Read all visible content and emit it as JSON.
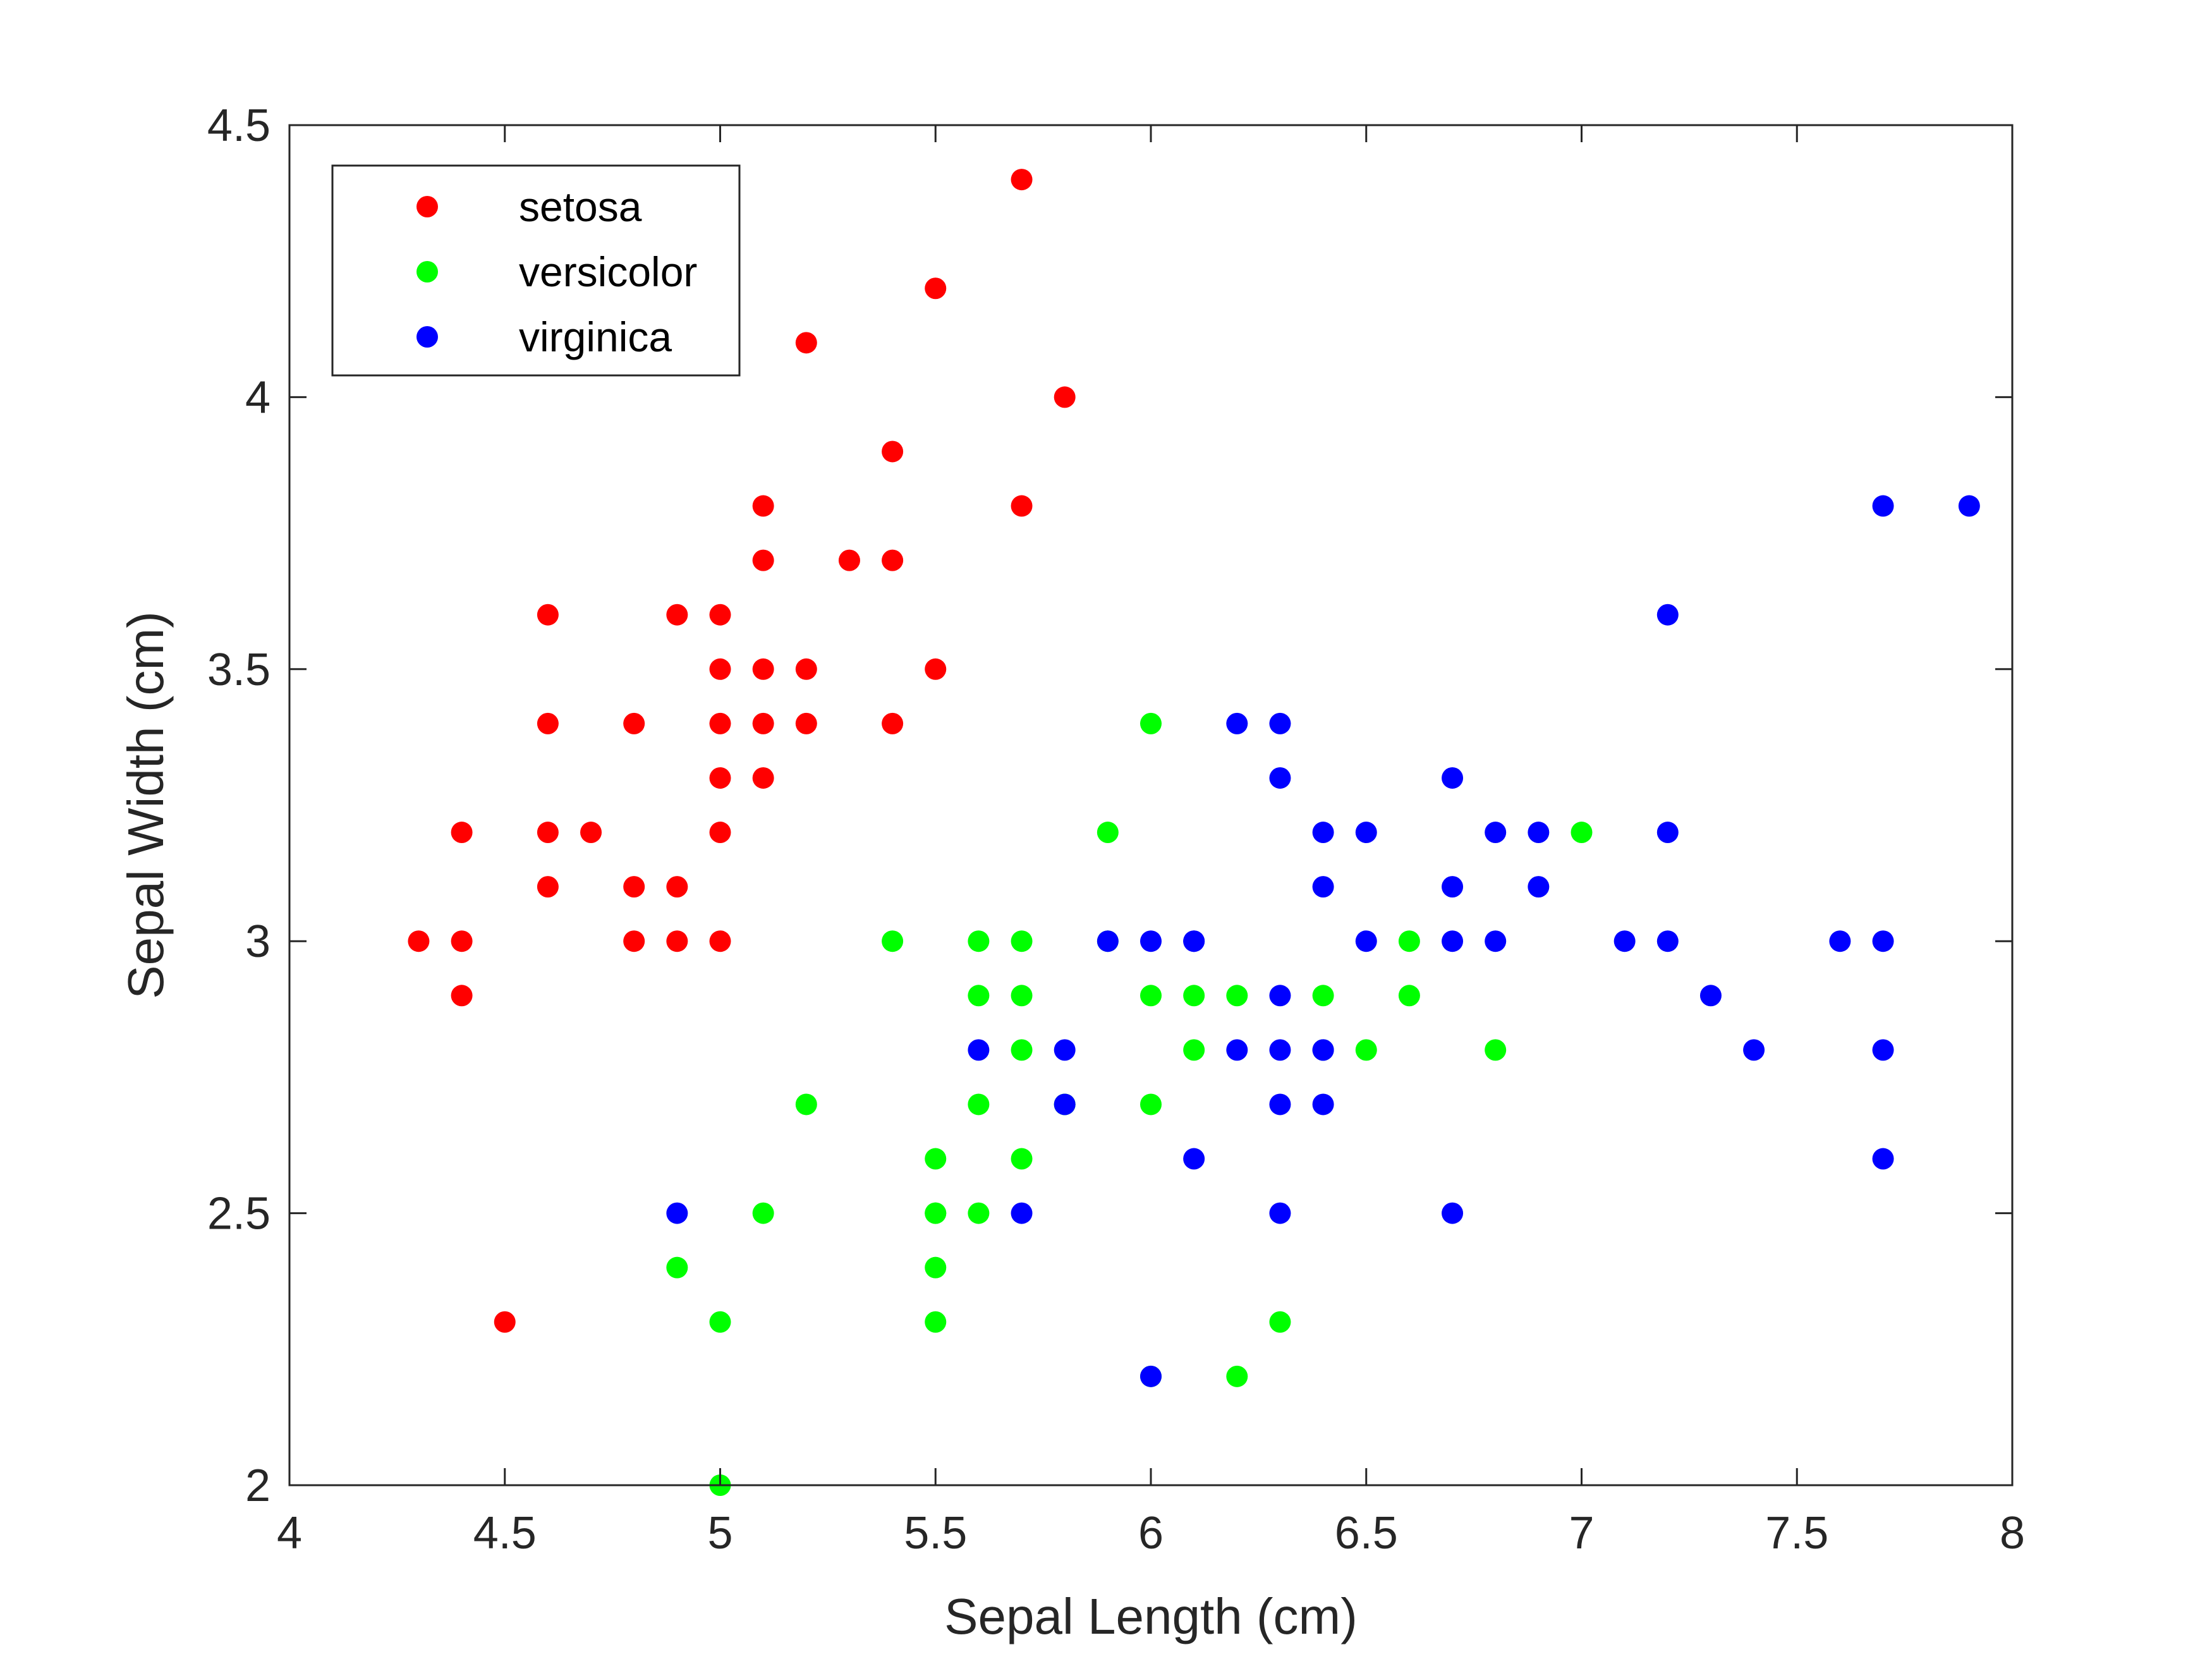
{
  "chart_data": {
    "type": "scatter",
    "title": "",
    "xlabel": "Sepal Length (cm)",
    "ylabel": "Sepal Width (cm)",
    "xlim": [
      4,
      8
    ],
    "ylim": [
      2,
      4.5
    ],
    "xticks": [
      "4",
      "4.5",
      "5",
      "5.5",
      "6",
      "6.5",
      "7",
      "7.5",
      "8"
    ],
    "yticks": [
      "2",
      "2.5",
      "3",
      "3.5",
      "4",
      "4.5"
    ],
    "grid": false,
    "legend_position": "top-left",
    "series": [
      {
        "name": "setosa",
        "color": "#ff0000",
        "points": [
          [
            5.1,
            3.5
          ],
          [
            4.9,
            3.0
          ],
          [
            4.7,
            3.2
          ],
          [
            4.6,
            3.1
          ],
          [
            5.0,
            3.6
          ],
          [
            5.4,
            3.9
          ],
          [
            4.6,
            3.4
          ],
          [
            5.0,
            3.4
          ],
          [
            4.4,
            2.9
          ],
          [
            4.9,
            3.1
          ],
          [
            5.4,
            3.7
          ],
          [
            4.8,
            3.4
          ],
          [
            4.8,
            3.0
          ],
          [
            4.3,
            3.0
          ],
          [
            5.8,
            4.0
          ],
          [
            5.7,
            4.4
          ],
          [
            5.4,
            3.4
          ],
          [
            5.7,
            3.8
          ],
          [
            5.1,
            3.8
          ],
          [
            5.2,
            3.5
          ],
          [
            5.0,
            3.2
          ],
          [
            5.5,
            4.2
          ],
          [
            5.2,
            4.1
          ],
          [
            5.0,
            3.5
          ],
          [
            4.4,
            3.0
          ],
          [
            4.5,
            2.3
          ],
          [
            5.1,
            3.3
          ],
          [
            4.4,
            3.2
          ],
          [
            5.3,
            3.7
          ],
          [
            5.0,
            3.3
          ],
          [
            4.8,
            3.1
          ],
          [
            4.9,
            3.6
          ],
          [
            5.2,
            3.4
          ],
          [
            5.0,
            3.0
          ],
          [
            4.6,
            3.2
          ],
          [
            5.1,
            3.7
          ],
          [
            5.5,
            3.5
          ],
          [
            4.6,
            3.6
          ],
          [
            5.1,
            3.4
          ]
        ]
      },
      {
        "name": "versicolor",
        "color": "#00ff00",
        "points": [
          [
            7.0,
            3.2
          ],
          [
            6.4,
            2.9
          ],
          [
            5.5,
            2.3
          ],
          [
            6.5,
            2.8
          ],
          [
            5.7,
            2.8
          ],
          [
            6.3,
            2.3
          ],
          [
            4.9,
            2.4
          ],
          [
            6.6,
            2.9
          ],
          [
            5.2,
            2.7
          ],
          [
            5.0,
            2.0
          ],
          [
            5.9,
            3.0
          ],
          [
            6.0,
            2.2
          ],
          [
            6.1,
            2.9
          ],
          [
            5.6,
            2.9
          ],
          [
            5.6,
            3.0
          ],
          [
            5.8,
            2.7
          ],
          [
            6.2,
            2.2
          ],
          [
            5.6,
            2.5
          ],
          [
            5.9,
            3.2
          ],
          [
            6.1,
            2.8
          ],
          [
            6.6,
            3.0
          ],
          [
            6.8,
            2.8
          ],
          [
            6.0,
            2.9
          ],
          [
            5.7,
            2.6
          ],
          [
            5.5,
            2.4
          ],
          [
            5.8,
            2.7
          ],
          [
            6.0,
            2.7
          ],
          [
            5.4,
            3.0
          ],
          [
            6.0,
            3.4
          ],
          [
            5.5,
            2.5
          ],
          [
            5.5,
            2.6
          ],
          [
            5.0,
            2.3
          ],
          [
            5.6,
            2.7
          ],
          [
            5.7,
            3.0
          ],
          [
            5.7,
            2.9
          ],
          [
            6.2,
            2.9
          ],
          [
            5.1,
            2.5
          ],
          [
            5.5,
            2.5
          ],
          [
            6.4,
            2.8
          ]
        ]
      },
      {
        "name": "virginica",
        "color": "#0000ff",
        "points": [
          [
            6.3,
            3.3
          ],
          [
            5.8,
            2.7
          ],
          [
            7.1,
            3.0
          ],
          [
            6.3,
            2.9
          ],
          [
            6.5,
            3.0
          ],
          [
            7.6,
            3.0
          ],
          [
            4.9,
            2.5
          ],
          [
            7.3,
            2.9
          ],
          [
            6.7,
            2.5
          ],
          [
            7.2,
            3.6
          ],
          [
            6.5,
            3.2
          ],
          [
            6.4,
            2.7
          ],
          [
            6.8,
            3.0
          ],
          [
            5.7,
            2.5
          ],
          [
            5.8,
            2.8
          ],
          [
            6.4,
            3.2
          ],
          [
            7.7,
            3.8
          ],
          [
            7.7,
            2.6
          ],
          [
            6.0,
            2.2
          ],
          [
            6.9,
            3.2
          ],
          [
            5.6,
            2.8
          ],
          [
            7.7,
            2.8
          ],
          [
            6.7,
            3.3
          ],
          [
            7.2,
            3.2
          ],
          [
            6.2,
            2.8
          ],
          [
            6.1,
            3.0
          ],
          [
            6.4,
            2.8
          ],
          [
            7.2,
            3.0
          ],
          [
            7.4,
            2.8
          ],
          [
            7.9,
            3.8
          ],
          [
            6.1,
            2.6
          ],
          [
            7.7,
            3.0
          ],
          [
            6.3,
            3.4
          ],
          [
            6.4,
            3.1
          ],
          [
            6.9,
            3.1
          ],
          [
            6.7,
            3.1
          ],
          [
            5.9,
            3.0
          ],
          [
            6.2,
            3.4
          ],
          [
            6.3,
            2.5
          ],
          [
            6.3,
            2.7
          ],
          [
            6.0,
            3.0
          ],
          [
            6.1,
            3.0
          ],
          [
            6.4,
            2.8
          ],
          [
            6.8,
            3.2
          ],
          [
            6.7,
            3.0
          ],
          [
            6.3,
            2.8
          ]
        ]
      }
    ]
  }
}
